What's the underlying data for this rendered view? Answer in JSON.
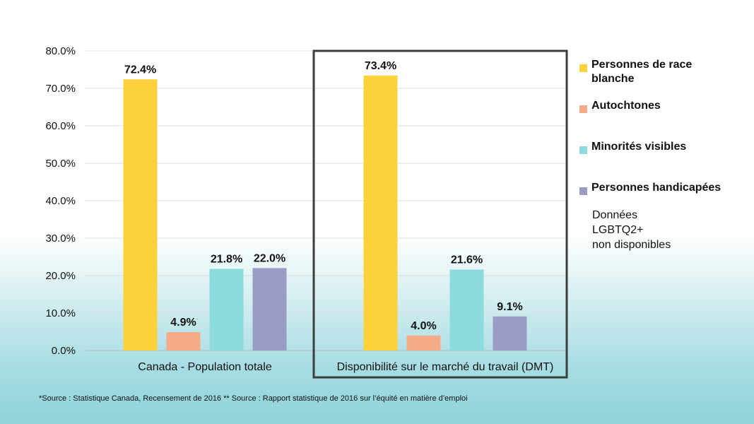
{
  "chart_data": {
    "type": "bar",
    "categories": [
      "Canada  - Population totale",
      "Disponibilité sur le marché du travail (DMT)"
    ],
    "series": [
      {
        "name": "Personnes de race blanche",
        "values": [
          72.4,
          73.4
        ],
        "color": "#fcd13b"
      },
      {
        "name": "Autochtones",
        "values": [
          4.9,
          4.0
        ],
        "color": "#f5ab87"
      },
      {
        "name": "Minorités visibles",
        "values": [
          21.8,
          21.6
        ],
        "color": "#8ddcdd"
      },
      {
        "name": "Personnes handicapées",
        "values": [
          22.0,
          9.1
        ],
        "color": "#9b9cc5"
      }
    ],
    "data_labels": [
      [
        "72.4%",
        "73.4%"
      ],
      [
        "4.9%",
        "4.0%"
      ],
      [
        "21.8%",
        "21.6%"
      ],
      [
        "22.0%",
        "9.1%"
      ]
    ],
    "y_ticks": [
      "0.0%",
      "10.0%",
      "20.0%",
      "30.0%",
      "40.0%",
      "50.0%",
      "60.0%",
      "70.0%",
      "80.0%"
    ],
    "ylim": [
      0,
      80
    ],
    "title": "",
    "xlabel": "",
    "ylabel": "",
    "grid": true,
    "highlighted_category": "Disponibilité sur le marché du travail (DMT)"
  },
  "legend": {
    "items": [
      {
        "label_line1": "Personnes de race",
        "label_line2": "blanche",
        "color": "#fcd13b"
      },
      {
        "label_line1": "Autochtones",
        "label_line2": "",
        "color": "#f5ab87"
      },
      {
        "label_line1": "Minorités visibles",
        "label_line2": "",
        "color": "#8ddcdd"
      },
      {
        "label_line1": "Personnes handicapées",
        "label_line2": "",
        "color": "#9b9cc5"
      }
    ],
    "note_line1": "Données",
    "note_line2": "LGBTQ2+",
    "note_line3": "non disponibles"
  },
  "footer": {
    "source": "*Source : Statistique Canada, Recensement de 2016   ** Source : Rapport statistique de 2016 sur l’équité en matière d’emploi"
  }
}
